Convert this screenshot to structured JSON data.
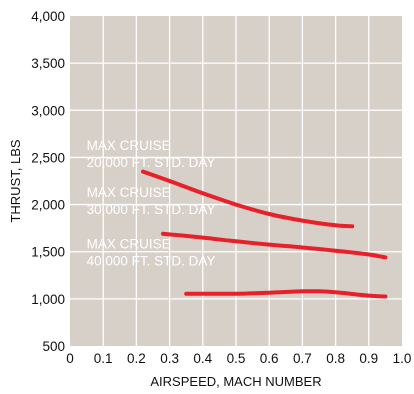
{
  "chart_data": {
    "type": "line",
    "title": "",
    "xlabel": "AIRSPEED, MACH NUMBER",
    "ylabel": "THRUST, LBS",
    "xlim": [
      0,
      1.0
    ],
    "ylim": [
      500,
      4000
    ],
    "grid": true,
    "legend": "none",
    "x_ticks": [
      "0",
      "0.1",
      "0.2",
      "0.3",
      "0.4",
      "0.5",
      "0.6",
      "0.7",
      "0.8",
      "0.9",
      "1.0"
    ],
    "y_ticks": [
      "500",
      "1,000",
      "1,500",
      "2,000",
      "2,500",
      "3,000",
      "3,500",
      "4,000"
    ],
    "colors": {
      "plot_background": "#d6d0c8",
      "line": "#e8202a",
      "grid": "#ffffff",
      "annotation_text": "#ffffff"
    },
    "annotations": [
      {
        "line1": "MAX CRUISE",
        "line2": "20,000 FT. STD. DAY"
      },
      {
        "line1": "MAX CRUISE",
        "line2": "30,000 FT. STD. DAY"
      },
      {
        "line1": "MAX CRUISE",
        "line2": "40,000 FT. STD. DAY"
      }
    ],
    "series": [
      {
        "x": [
          0.22,
          0.3,
          0.4,
          0.5,
          0.6,
          0.7,
          0.8,
          0.85
        ],
        "y": [
          2350,
          2250,
          2120,
          2000,
          1900,
          1830,
          1780,
          1770
        ]
      },
      {
        "x": [
          0.28,
          0.4,
          0.5,
          0.6,
          0.7,
          0.8,
          0.9,
          0.95
        ],
        "y": [
          1690,
          1650,
          1610,
          1575,
          1545,
          1510,
          1470,
          1440
        ]
      },
      {
        "x": [
          0.35,
          0.4,
          0.5,
          0.6,
          0.7,
          0.75,
          0.8,
          0.9,
          0.95
        ],
        "y": [
          1055,
          1055,
          1055,
          1065,
          1080,
          1080,
          1070,
          1035,
          1025
        ]
      }
    ]
  }
}
